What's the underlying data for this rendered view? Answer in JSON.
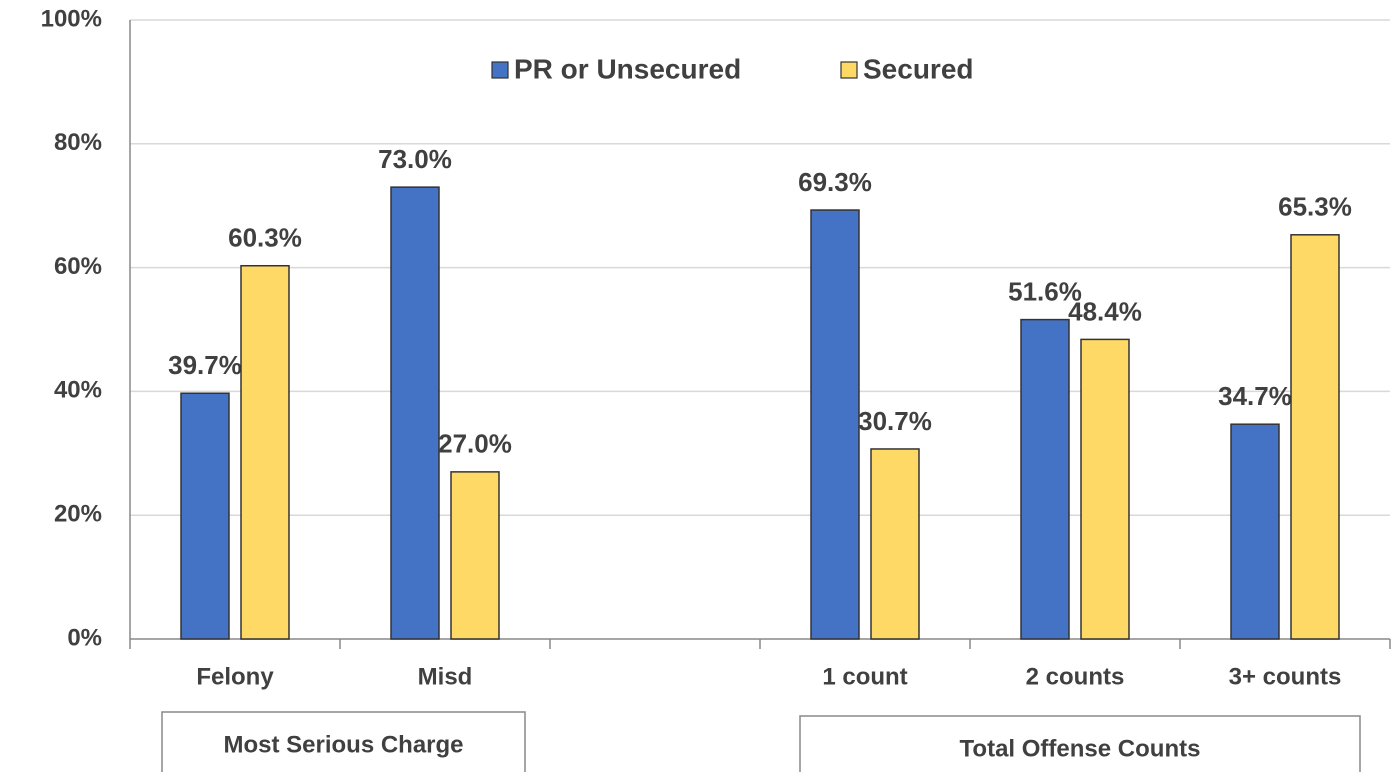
{
  "chart_data": {
    "type": "bar",
    "categories": [
      "Felony",
      "Misd",
      null,
      "1 count",
      "2 counts",
      "3+ counts"
    ],
    "series": [
      {
        "name": "PR or Unsecured",
        "color": "#4472c4",
        "values": [
          39.7,
          73.0,
          null,
          69.3,
          51.6,
          34.7
        ],
        "value_labels": [
          "39.7%",
          "73.0%",
          null,
          "69.3%",
          "51.6%",
          "34.7%"
        ]
      },
      {
        "name": "Secured",
        "color": "#ffd966",
        "values": [
          60.3,
          27.0,
          null,
          30.7,
          48.4,
          65.3
        ],
        "value_labels": [
          "60.3%",
          "27.0%",
          null,
          "30.7%",
          "48.4%",
          "65.3%"
        ]
      }
    ],
    "groups": [
      "Most Serious Charge",
      "Total Offense Counts"
    ],
    "ylim": [
      0,
      100
    ],
    "yticks": [
      {
        "value": 0,
        "label": "0%"
      },
      {
        "value": 20,
        "label": "20%"
      },
      {
        "value": 40,
        "label": "40%"
      },
      {
        "value": 60,
        "label": "60%"
      },
      {
        "value": 80,
        "label": "80%"
      },
      {
        "value": 100,
        "label": "100%"
      }
    ],
    "grid": true,
    "legend": "top"
  }
}
